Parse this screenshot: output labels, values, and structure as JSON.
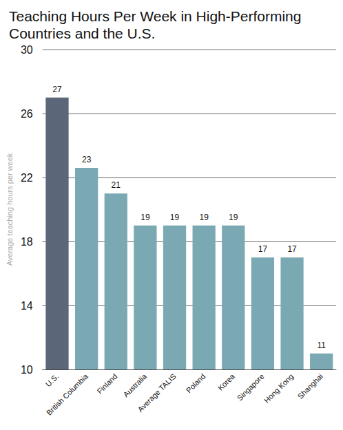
{
  "chart_data": {
    "type": "bar",
    "title": "Teaching Hours Per Week in High-Performing Countries and the U.S.",
    "y_label": "Average teaching hours per week",
    "categories": [
      "U.S.",
      "British Columbia",
      "Finland",
      "Australia",
      "Average TALIS",
      "Poland",
      "Korea",
      "Singapore",
      "Hong Kong",
      "Shanghai"
    ],
    "values": [
      27,
      22.6,
      21,
      19,
      19,
      19,
      19,
      17,
      17,
      11
    ],
    "value_labels": [
      "27",
      "23",
      "21",
      "19",
      "19",
      "19",
      "19",
      "17",
      "17",
      "11"
    ],
    "colors": [
      "#5b6779",
      "#7aa9b4",
      "#7aa9b4",
      "#7aa9b4",
      "#7aa9b4",
      "#7aa9b4",
      "#7aa9b4",
      "#7aa9b4",
      "#7aa9b4",
      "#7aa9b4"
    ],
    "ylim": [
      10,
      30
    ],
    "yticks": [
      10,
      14,
      18,
      22,
      26,
      30
    ],
    "grid": true,
    "data_labels": true
  }
}
